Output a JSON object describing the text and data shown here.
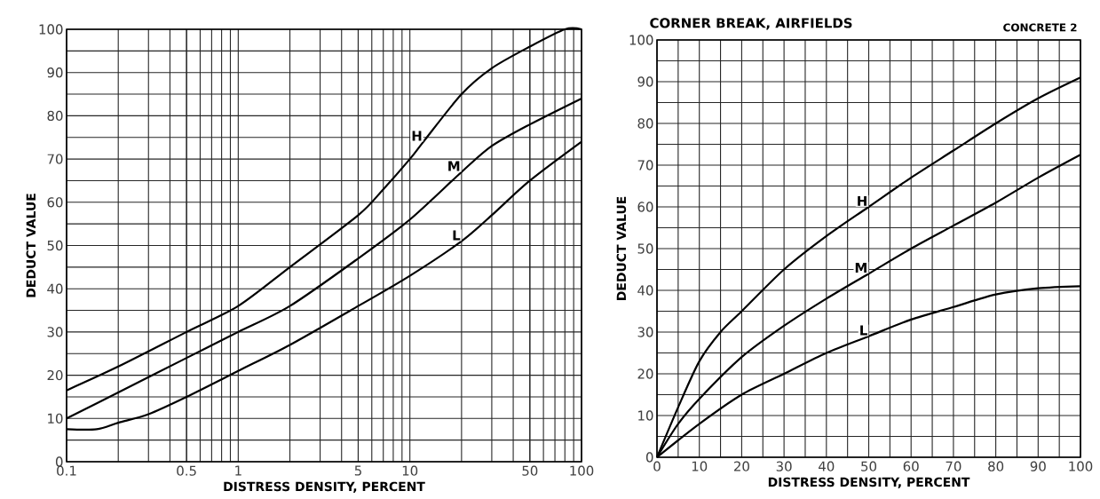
{
  "chart_data": [
    {
      "type": "line",
      "xlabel": "DISTRESS DENSITY, PERCENT",
      "ylabel": "DEDUCT VALUE",
      "log": "x",
      "xlim": [
        0.1,
        100
      ],
      "ylim": [
        0,
        100
      ],
      "xticks": [
        0.1,
        0.5,
        1,
        5,
        10,
        50,
        100
      ],
      "yticks": [
        0,
        10,
        20,
        30,
        40,
        50,
        60,
        70,
        80,
        90,
        100
      ],
      "grid": true,
      "marker": "none",
      "line_style": "solid",
      "series": [
        {
          "name": "H",
          "color": "#000000",
          "x": [
            0.1,
            0.2,
            0.5,
            1,
            2,
            5,
            7,
            10,
            12,
            20,
            30,
            50,
            80,
            100
          ],
          "values": [
            16.5,
            22,
            30,
            36,
            45,
            57,
            63,
            70,
            74,
            85,
            91,
            96,
            100,
            100
          ]
        },
        {
          "name": "M",
          "color": "#000000",
          "x": [
            0.1,
            0.2,
            0.5,
            1,
            2,
            5,
            10,
            20,
            30,
            50,
            100
          ],
          "values": [
            10,
            16,
            24,
            30,
            36,
            47,
            56,
            67,
            73,
            78,
            84
          ]
        },
        {
          "name": "L",
          "color": "#000000",
          "x": [
            0.1,
            0.15,
            0.2,
            0.3,
            0.5,
            1,
            2,
            5,
            10,
            20,
            30,
            50,
            100
          ],
          "values": [
            7.5,
            7.5,
            9,
            11,
            15,
            21,
            27,
            36,
            43,
            51,
            57,
            65,
            74
          ]
        }
      ]
    },
    {
      "type": "line",
      "title": "CORNER BREAK, AIRFIELDS",
      "annotations": [
        "CONCRETE 2"
      ],
      "xlabel": "DISTRESS DENSITY, PERCENT",
      "ylabel": "DEDUCT VALUE",
      "xlim": [
        0,
        100
      ],
      "ylim": [
        0,
        100
      ],
      "xticks": [
        0,
        10,
        20,
        30,
        40,
        50,
        60,
        70,
        80,
        90,
        100
      ],
      "yticks": [
        0,
        10,
        20,
        30,
        40,
        50,
        60,
        70,
        80,
        90,
        100
      ],
      "grid": true,
      "marker": "none",
      "line_style": "solid",
      "series": [
        {
          "name": "H",
          "color": "#000000",
          "x": [
            0,
            5,
            10,
            15,
            20,
            30,
            40,
            50,
            60,
            70,
            80,
            90,
            100
          ],
          "values": [
            0,
            12,
            23,
            30,
            35,
            45,
            53,
            60,
            67,
            73.5,
            80,
            86,
            91
          ]
        },
        {
          "name": "M",
          "color": "#000000",
          "x": [
            0,
            5,
            10,
            20,
            30,
            40,
            50,
            60,
            70,
            80,
            90,
            100
          ],
          "values": [
            0,
            8,
            14,
            24,
            31.5,
            38,
            44,
            50,
            55.5,
            61,
            67,
            72.5
          ]
        },
        {
          "name": "L",
          "color": "#000000",
          "x": [
            0,
            10,
            20,
            30,
            40,
            50,
            60,
            70,
            80,
            90,
            100
          ],
          "values": [
            0,
            8,
            15,
            20,
            25,
            29,
            33,
            36,
            39,
            40.5,
            41
          ]
        }
      ]
    }
  ]
}
